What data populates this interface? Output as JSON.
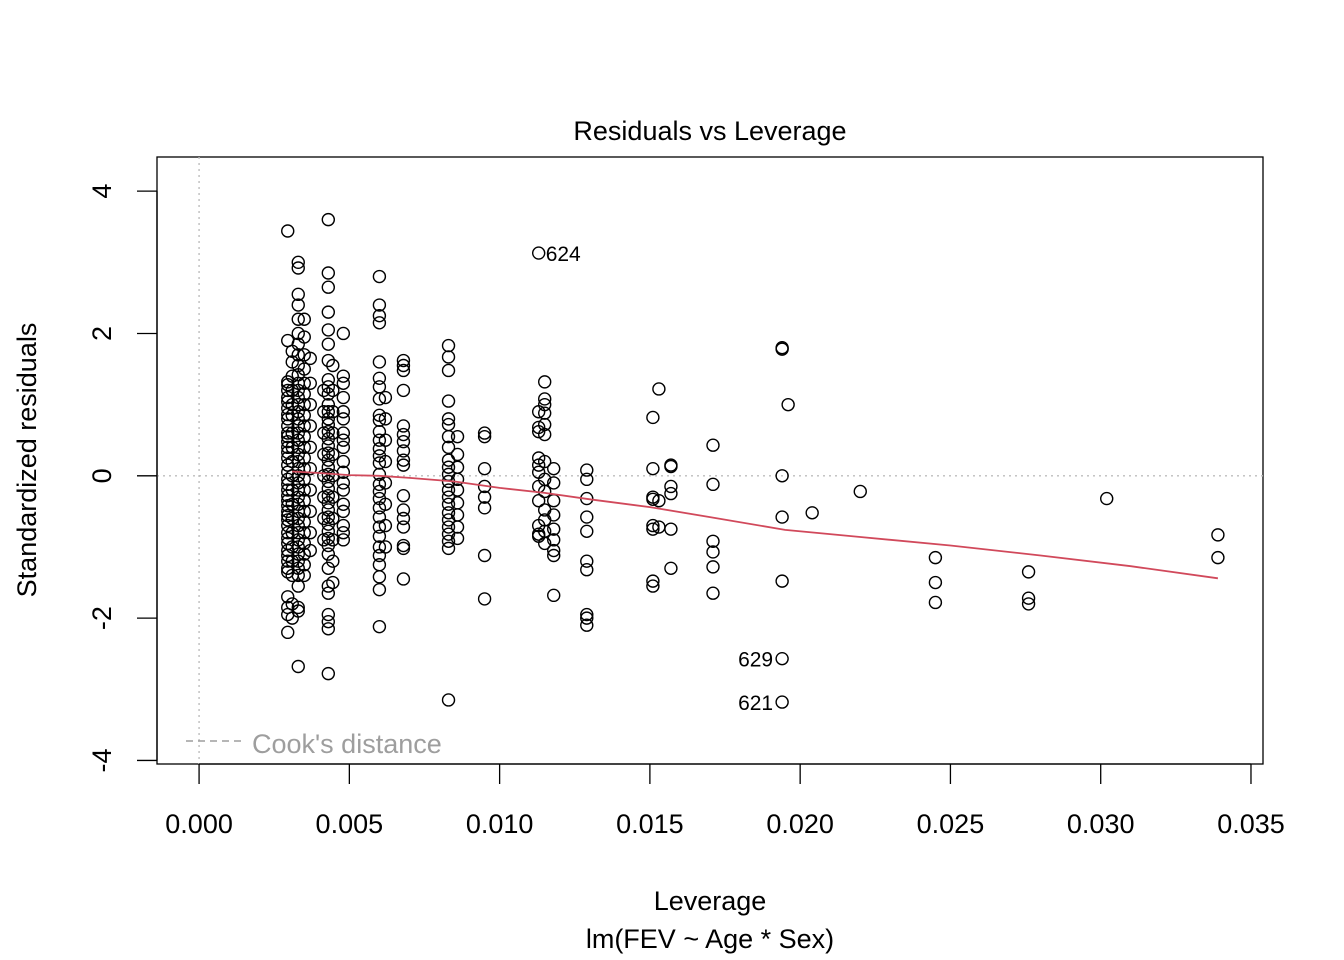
{
  "chart_data": {
    "type": "scatter",
    "title": "Residuals vs Leverage",
    "xlabel": "Leverage",
    "sublabel": "lm(FEV ~ Age * Sex)",
    "ylabel": "Standardized residuals",
    "xlim": [
      -0.0014,
      0.0354
    ],
    "ylim": [
      -4.05,
      4.48
    ],
    "x_ticks": [
      0.0,
      0.005,
      0.01,
      0.015,
      0.02,
      0.025,
      0.03,
      0.035
    ],
    "x_tick_labels": [
      "0.000",
      "0.005",
      "0.010",
      "0.015",
      "0.020",
      "0.025",
      "0.030",
      "0.035"
    ],
    "y_ticks": [
      -4,
      -2,
      0,
      2,
      4
    ],
    "y_tick_labels": [
      "-4",
      "-2",
      "0",
      "2",
      "4"
    ],
    "legend": {
      "label": "Cook's distance",
      "position": "bottom-left",
      "color": "#9e9e9e"
    },
    "reference_lines": {
      "h": 0,
      "v": 0,
      "color": "#bdbdbd"
    },
    "smooth_color": "#d1495b",
    "smooth": [
      [
        0.0031,
        0.06
      ],
      [
        0.004,
        0.04
      ],
      [
        0.005,
        0.01
      ],
      [
        0.006,
        0.0
      ],
      [
        0.007,
        -0.03
      ],
      [
        0.0085,
        -0.08
      ],
      [
        0.01,
        -0.17
      ],
      [
        0.0115,
        -0.24
      ],
      [
        0.013,
        -0.33
      ],
      [
        0.015,
        -0.44
      ],
      [
        0.017,
        -0.58
      ],
      [
        0.0195,
        -0.76
      ],
      [
        0.022,
        -0.86
      ],
      [
        0.025,
        -0.98
      ],
      [
        0.028,
        -1.12
      ],
      [
        0.031,
        -1.27
      ],
      [
        0.0339,
        -1.44
      ]
    ],
    "labeled_points": [
      {
        "id": "624",
        "x": 0.0113,
        "y": 3.13,
        "side": "right"
      },
      {
        "id": "629",
        "x": 0.0194,
        "y": -2.57,
        "side": "left"
      },
      {
        "id": "621",
        "x": 0.0194,
        "y": -3.18,
        "side": "left"
      }
    ],
    "columns": [
      {
        "x": 0.00295,
        "y": [
          3.44,
          1.9,
          1.32,
          1.28,
          1.2,
          1.1,
          1.04,
          0.95,
          0.86,
          0.8,
          0.7,
          0.6,
          0.55,
          0.48,
          0.4,
          0.33,
          0.25,
          0.15,
          0.05,
          -0.05,
          -0.12,
          -0.2,
          -0.28,
          -0.35,
          -0.42,
          -0.5,
          -0.56,
          -0.62,
          -0.7,
          -0.8,
          -0.88,
          -0.95,
          -1.05,
          -1.12,
          -1.2,
          -1.3,
          -1.35,
          -1.7,
          -1.85,
          -1.95,
          -2.2
        ]
      },
      {
        "x": 0.0031,
        "y": [
          1.75,
          1.6,
          1.4,
          1.2,
          1.0,
          0.85,
          0.6,
          0.4,
          0.2,
          0.0,
          -0.2,
          -0.4,
          -0.6,
          -0.8,
          -1.0,
          -1.2,
          -1.4,
          -1.8,
          -2.0
        ]
      },
      {
        "x": 0.0033,
        "y": [
          3.0,
          2.92,
          2.55,
          2.4,
          2.2,
          2.0,
          1.85,
          1.7,
          1.55,
          1.42,
          1.3,
          1.2,
          1.1,
          1.0,
          0.9,
          0.8,
          0.7,
          0.6,
          0.5,
          0.4,
          0.3,
          0.2,
          0.1,
          0.0,
          -0.1,
          -0.2,
          -0.3,
          -0.4,
          -0.5,
          -0.6,
          -0.7,
          -0.8,
          -0.9,
          -1.0,
          -1.1,
          -1.2,
          -1.3,
          -1.4,
          -1.55,
          -1.85,
          -1.9,
          -2.68
        ]
      },
      {
        "x": 0.0035,
        "y": [
          2.2,
          1.95,
          1.7,
          1.5,
          1.3,
          1.15,
          1.0,
          0.85,
          0.7,
          0.55,
          0.4,
          0.25,
          0.1,
          -0.05,
          -0.2,
          -0.35,
          -0.5,
          -0.65,
          -0.8,
          -0.95,
          -1.1,
          -1.25,
          -1.4
        ]
      },
      {
        "x": 0.0037,
        "y": [
          1.65,
          1.3,
          1.0,
          0.7,
          0.4,
          0.1,
          -0.2,
          -0.5,
          -0.8,
          -1.05
        ]
      },
      {
        "x": 0.00415,
        "y": [
          1.2,
          0.9,
          0.6,
          0.3,
          0.0,
          -0.3,
          -0.6,
          -0.9
        ]
      },
      {
        "x": 0.0043,
        "y": [
          3.6,
          2.85,
          2.65,
          2.3,
          2.05,
          1.85,
          1.62,
          1.35,
          1.25,
          1.15,
          1.0,
          0.9,
          0.8,
          0.72,
          0.62,
          0.52,
          0.42,
          0.32,
          0.22,
          0.12,
          0.02,
          -0.08,
          -0.18,
          -0.28,
          -0.38,
          -0.48,
          -0.58,
          -0.68,
          -0.78,
          -0.88,
          -0.98,
          -1.1,
          -1.3,
          -1.55,
          -1.65,
          -1.95,
          -2.05,
          -2.15,
          -2.78
        ]
      },
      {
        "x": 0.00445,
        "y": [
          1.55,
          1.2,
          0.9,
          0.6,
          0.3,
          0.0,
          -0.3,
          -0.6,
          -0.9,
          -1.2,
          -1.5
        ]
      },
      {
        "x": 0.0048,
        "y": [
          2.0,
          1.4,
          1.3,
          1.1,
          0.9,
          0.8,
          0.6,
          0.5,
          0.4,
          0.2,
          0.05,
          -0.1,
          -0.2,
          -0.4,
          -0.5,
          -0.7,
          -0.8,
          -0.9
        ]
      },
      {
        "x": 0.006,
        "y": [
          2.8,
          2.4,
          2.25,
          2.15,
          1.6,
          1.37,
          1.25,
          1.08,
          0.85,
          0.78,
          0.62,
          0.5,
          0.38,
          0.28,
          0.18,
          0.02,
          -0.12,
          -0.22,
          -0.32,
          -0.45,
          -0.58,
          -0.72,
          -0.85,
          -1.0,
          -1.12,
          -1.25,
          -1.42,
          -1.6,
          -2.12
        ]
      },
      {
        "x": 0.0062,
        "y": [
          1.1,
          0.8,
          0.5,
          0.2,
          -0.1,
          -0.4,
          -0.7,
          -1.0
        ]
      },
      {
        "x": 0.0068,
        "y": [
          1.62,
          1.55,
          1.48,
          1.2,
          0.7,
          0.58,
          0.48,
          0.35,
          0.22,
          0.15,
          -0.28,
          -0.48,
          -0.6,
          -0.72,
          -0.98,
          -1.02,
          -1.45
        ]
      },
      {
        "x": 0.0083,
        "y": [
          1.83,
          1.67,
          1.48,
          1.05,
          0.8,
          0.72,
          0.55,
          0.4,
          0.22,
          0.12,
          0.02,
          -0.08,
          -0.2,
          -0.3,
          -0.4,
          -0.52,
          -0.62,
          -0.72,
          -0.82,
          -0.92,
          -1.02,
          -3.15
        ]
      },
      {
        "x": 0.0086,
        "y": [
          0.55,
          0.3,
          0.12,
          -0.05,
          -0.2,
          -0.38,
          -0.55,
          -0.72,
          -0.88
        ]
      },
      {
        "x": 0.0095,
        "y": [
          0.6,
          0.55,
          0.1,
          -0.15,
          -0.3,
          -0.45,
          -1.12,
          -1.73
        ]
      },
      {
        "x": 0.0113,
        "y": [
          3.13,
          0.9,
          0.68,
          0.62,
          0.25,
          0.15,
          0.05,
          -0.15,
          -0.35,
          -0.7,
          -0.82,
          -0.85
        ]
      },
      {
        "x": 0.0115,
        "y": [
          1.32,
          1.08,
          1.0,
          0.88,
          0.72,
          0.58,
          0.2,
          -0.05,
          -0.22,
          -0.48,
          -0.62,
          -0.78,
          -0.95
        ]
      },
      {
        "x": 0.0118,
        "y": [
          0.1,
          -0.1,
          -0.35,
          -0.55,
          -0.75,
          -0.9,
          -1.05,
          -1.12,
          -1.68
        ]
      },
      {
        "x": 0.0129,
        "y": [
          0.08,
          -0.05,
          -0.32,
          -0.58,
          -0.78,
          -1.2,
          -1.32,
          -1.95,
          -2.0,
          -2.1
        ]
      },
      {
        "x": 0.0151,
        "y": [
          0.82,
          0.1,
          -0.3,
          -0.33,
          -0.7,
          -0.75,
          -1.48,
          -1.55
        ]
      },
      {
        "x": 0.0153,
        "y": [
          1.22,
          -0.35,
          -0.72
        ]
      },
      {
        "x": 0.0157,
        "y": [
          0.15,
          0.13,
          -0.15,
          -0.25,
          -0.75,
          -1.3
        ]
      },
      {
        "x": 0.0171,
        "y": [
          0.43,
          -0.12,
          -0.92,
          -1.07,
          -1.28,
          -1.65
        ]
      },
      {
        "x": 0.0194,
        "y": [
          1.8,
          1.78,
          0.0,
          -0.58,
          -1.48,
          -2.57,
          -3.18
        ]
      },
      {
        "x": 0.0196,
        "y": [
          1.0
        ]
      },
      {
        "x": 0.0204,
        "y": [
          -0.52
        ]
      },
      {
        "x": 0.022,
        "y": [
          -0.22
        ]
      },
      {
        "x": 0.0245,
        "y": [
          -1.15,
          -1.5,
          -1.78
        ]
      },
      {
        "x": 0.0276,
        "y": [
          -1.35,
          -1.72,
          -1.8
        ]
      },
      {
        "x": 0.0302,
        "y": [
          -0.32
        ]
      },
      {
        "x": 0.0339,
        "y": [
          -0.83,
          -1.15
        ]
      }
    ]
  }
}
